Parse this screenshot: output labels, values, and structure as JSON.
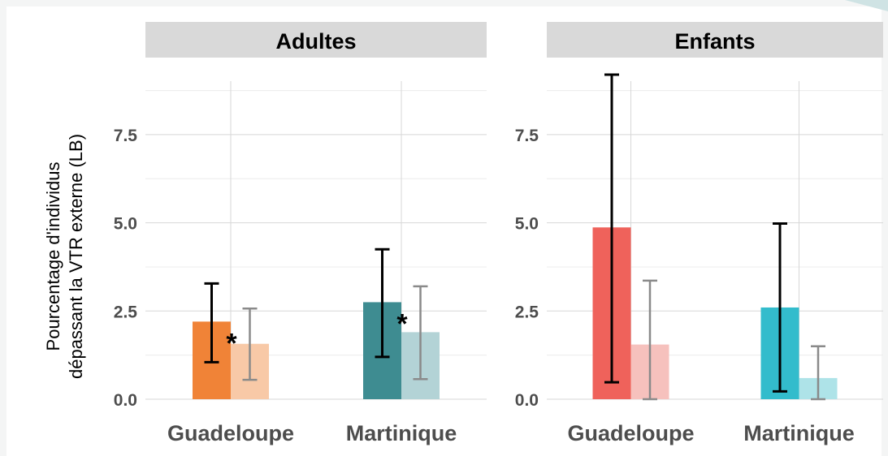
{
  "chart_data": {
    "type": "bar",
    "ylabel_lines": [
      "Pourcentage d'individus",
      "dépassant la VTR externe (LB)"
    ],
    "y_ticks": [
      "0.0",
      "2.5",
      "5.0",
      "7.5"
    ],
    "y_tick_values": [
      0,
      2.5,
      5,
      7.5
    ],
    "ylim": [
      0,
      9.2
    ],
    "grid": true,
    "categories": [
      "Guadeloupe",
      "Martinique"
    ],
    "panels": [
      {
        "title": "Adultes",
        "bars": [
          {
            "category": "Guadeloupe",
            "value": 2.2,
            "err_low": 1.05,
            "err_high": 3.28,
            "color": "#f08337",
            "emphasis": "dark",
            "annotation": "*"
          },
          {
            "category": "Guadeloupe",
            "value": 1.57,
            "err_low": 0.55,
            "err_high": 2.57,
            "color": "#f8c9a7",
            "emphasis": "light",
            "annotation": ""
          },
          {
            "category": "Martinique",
            "value": 2.75,
            "err_low": 1.2,
            "err_high": 4.25,
            "color": "#3e8c91",
            "emphasis": "dark",
            "annotation": "*"
          },
          {
            "category": "Martinique",
            "value": 1.9,
            "err_low": 0.57,
            "err_high": 3.2,
            "color": "#b3d3d6",
            "emphasis": "light",
            "annotation": ""
          }
        ]
      },
      {
        "title": "Enfants",
        "bars": [
          {
            "category": "Guadeloupe",
            "value": 4.87,
            "err_low": 0.48,
            "err_high": 9.2,
            "color": "#ef625b",
            "emphasis": "dark",
            "annotation": ""
          },
          {
            "category": "Guadeloupe",
            "value": 1.55,
            "err_low": 0.0,
            "err_high": 3.36,
            "color": "#f6c1bd",
            "emphasis": "light",
            "annotation": ""
          },
          {
            "category": "Martinique",
            "value": 2.6,
            "err_low": 0.22,
            "err_high": 4.98,
            "color": "#33bccc",
            "emphasis": "dark",
            "annotation": ""
          },
          {
            "category": "Martinique",
            "value": 0.6,
            "err_low": 0.0,
            "err_high": 1.5,
            "color": "#aee3e8",
            "emphasis": "light",
            "annotation": ""
          }
        ]
      }
    ]
  }
}
